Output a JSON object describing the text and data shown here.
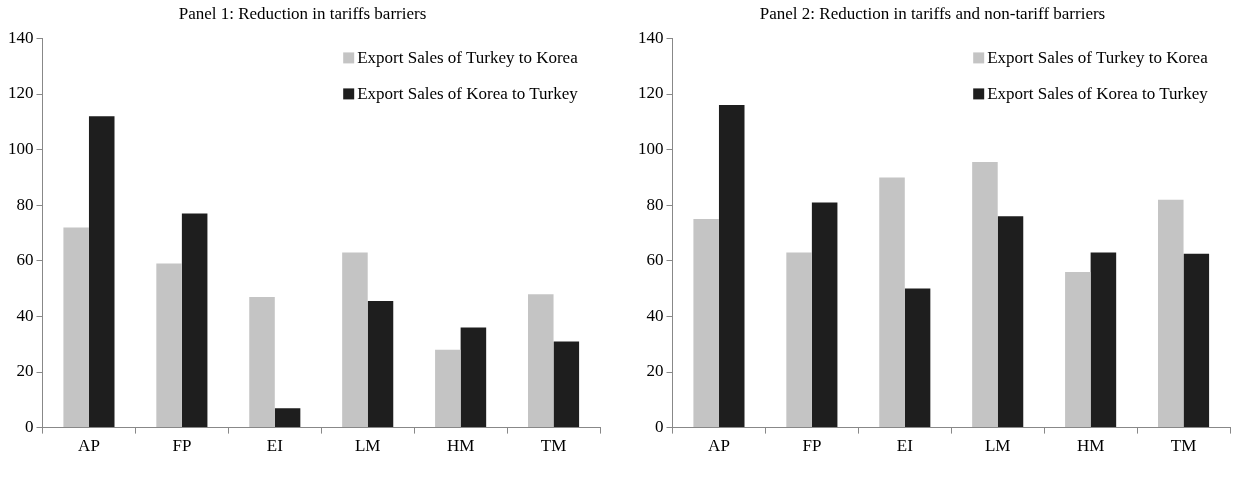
{
  "chart_data": [
    {
      "type": "bar",
      "title": "Panel 1: Reduction in tariffs barriers",
      "categories": [
        "AP",
        "FP",
        "EI",
        "LM",
        "HM",
        "TM"
      ],
      "series": [
        {
          "name": "Export Sales of Turkey to Korea",
          "color": "#c4c4c4",
          "values": [
            72,
            59,
            47,
            63,
            28,
            48
          ]
        },
        {
          "name": "Export Sales of Korea to Turkey",
          "color": "#1e1e1e",
          "values": [
            112,
            77,
            7,
            45.5,
            36,
            31
          ]
        }
      ],
      "ylim": [
        0,
        140
      ],
      "yticks": [
        0,
        20,
        40,
        60,
        80,
        100,
        120,
        140
      ],
      "grid": false,
      "legend": "top right"
    },
    {
      "type": "bar",
      "title": "Panel 2: Reduction in tariffs and non-tariff barriers",
      "categories": [
        "AP",
        "FP",
        "EI",
        "LM",
        "HM",
        "TM"
      ],
      "series": [
        {
          "name": "Export Sales of Turkey to Korea",
          "color": "#c4c4c4",
          "values": [
            75,
            63,
            90,
            95.5,
            56,
            82
          ]
        },
        {
          "name": "Export Sales of Korea to Turkey",
          "color": "#1e1e1e",
          "values": [
            116,
            81,
            50,
            76,
            63,
            62.5
          ]
        }
      ],
      "ylim": [
        0,
        140
      ],
      "yticks": [
        0,
        20,
        40,
        60,
        80,
        100,
        120,
        140
      ],
      "grid": false,
      "legend": "top right"
    }
  ]
}
